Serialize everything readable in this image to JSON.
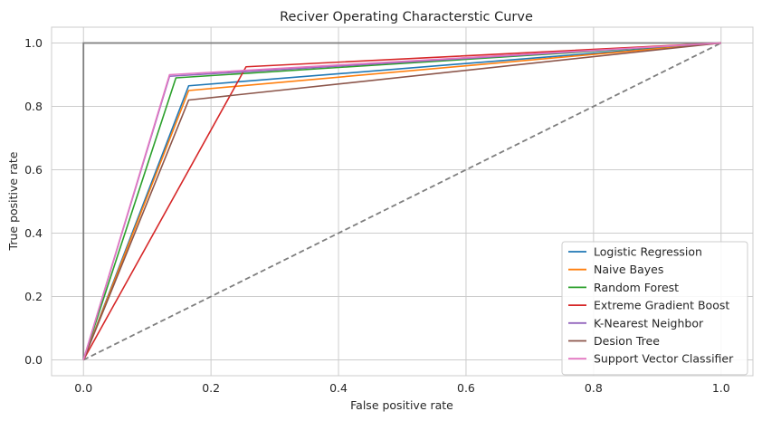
{
  "chart_data": {
    "type": "line",
    "title": "Reciver Operating Characterstic Curve",
    "xlabel": "False positive rate",
    "ylabel": "True positive rate",
    "xlim": [
      -0.05,
      1.05
    ],
    "ylim": [
      -0.05,
      1.05
    ],
    "xticks": [
      0.0,
      0.2,
      0.4,
      0.6,
      0.8,
      1.0
    ],
    "yticks": [
      0.0,
      0.2,
      0.4,
      0.6,
      0.8,
      1.0
    ],
    "xtick_labels": [
      "0.0",
      "0.2",
      "0.4",
      "0.6",
      "0.8",
      "1.0"
    ],
    "ytick_labels": [
      "0.0",
      "0.2",
      "0.4",
      "0.6",
      "0.8",
      "1.0"
    ],
    "grid": true,
    "legend_position": "lower-right",
    "series": [
      {
        "name": "Logistic Regression",
        "color": "#1f77b4",
        "x": [
          0,
          0.165,
          1
        ],
        "y": [
          0,
          0.865,
          1
        ]
      },
      {
        "name": "Naive Bayes",
        "color": "#ff7f0e",
        "x": [
          0,
          0.165,
          1
        ],
        "y": [
          0,
          0.85,
          1
        ]
      },
      {
        "name": "Random Forest",
        "color": "#2ca02c",
        "x": [
          0,
          0.145,
          1
        ],
        "y": [
          0,
          0.89,
          1
        ]
      },
      {
        "name": "Extreme Gradient Boost",
        "color": "#d62728",
        "x": [
          0,
          0.255,
          1
        ],
        "y": [
          0,
          0.925,
          1
        ]
      },
      {
        "name": "K-Nearest Neighbor",
        "color": "#9467bd",
        "x": [
          0,
          0.135,
          1
        ],
        "y": [
          0,
          0.895,
          1
        ]
      },
      {
        "name": "Desion Tree",
        "color": "#8c564b",
        "x": [
          0,
          0.165,
          1
        ],
        "y": [
          0,
          0.82,
          1
        ]
      },
      {
        "name": "Support Vector Classifier",
        "color": "#e377c2",
        "x": [
          0,
          0.135,
          1
        ],
        "y": [
          0,
          0.9,
          1
        ]
      }
    ],
    "reference_lines": [
      {
        "style": "solid",
        "color": "#7f7f7f",
        "x": [
          0,
          0,
          1
        ],
        "y": [
          0,
          1,
          1
        ]
      },
      {
        "style": "dashed",
        "color": "#7f7f7f",
        "x": [
          0,
          1
        ],
        "y": [
          0,
          1
        ]
      }
    ]
  }
}
